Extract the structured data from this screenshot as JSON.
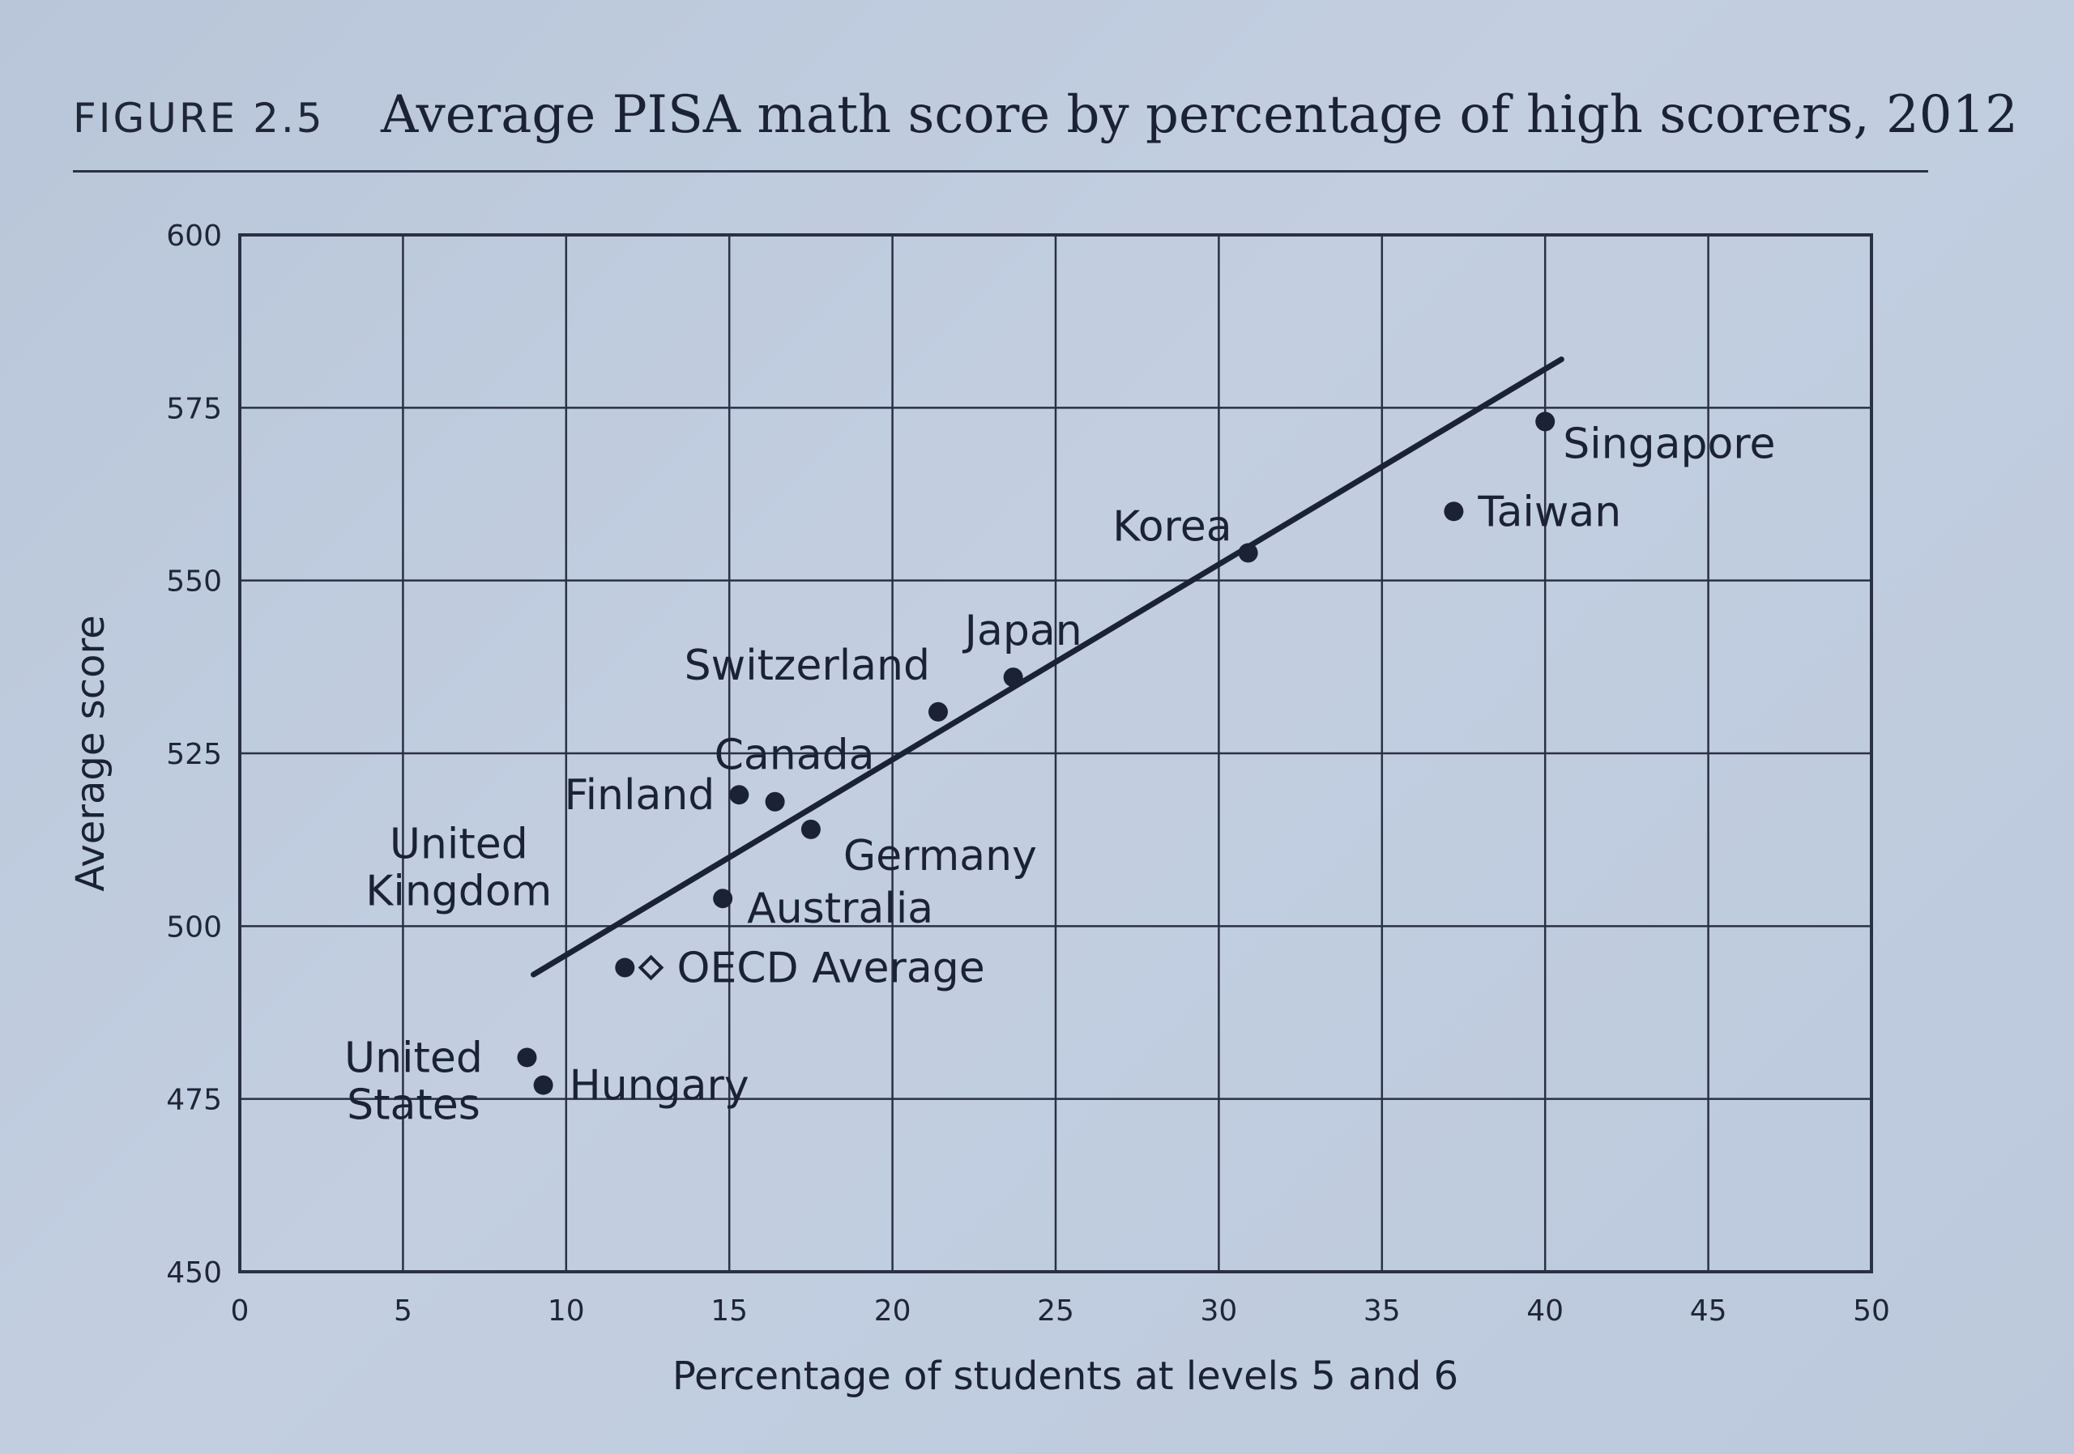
{
  "figure": {
    "label": "FIGURE 2.5",
    "title": "Average PISA math score by percentage of high scorers, 2012"
  },
  "chart_data": {
    "type": "scatter",
    "title": "Average PISA math score by percentage of high scorers, 2012",
    "xlabel": "Percentage of students at levels 5 and 6",
    "ylabel": "Average score",
    "xlim": [
      0,
      50
    ],
    "ylim": [
      450,
      600
    ],
    "xticks": [
      0,
      5,
      10,
      15,
      20,
      25,
      30,
      35,
      40,
      45,
      50
    ],
    "yticks": [
      450,
      475,
      500,
      525,
      550,
      575,
      600
    ],
    "grid": true,
    "colors": {
      "ink": "#1b2235",
      "grid": "#2a3145"
    },
    "points": [
      {
        "label": "Singapore",
        "x": 40,
        "y": 573,
        "marker": "filled"
      },
      {
        "label": "Taiwan",
        "x": 37.2,
        "y": 560,
        "marker": "filled"
      },
      {
        "label": "Korea",
        "x": 30.9,
        "y": 554,
        "marker": "filled"
      },
      {
        "label": "Japan",
        "x": 23.7,
        "y": 536,
        "marker": "filled"
      },
      {
        "label": "Switzerland",
        "x": 21.4,
        "y": 531,
        "marker": "filled"
      },
      {
        "label": "Canada",
        "x": 16.4,
        "y": 518,
        "marker": "filled"
      },
      {
        "label": "Finland",
        "x": 15.3,
        "y": 519,
        "marker": "filled"
      },
      {
        "label": "Germany",
        "x": 17.5,
        "y": 514,
        "marker": "filled"
      },
      {
        "label": "Australia",
        "x": 14.8,
        "y": 504,
        "marker": "filled"
      },
      {
        "label": "United Kingdom",
        "x": 11.8,
        "y": 494,
        "marker": "filled"
      },
      {
        "label": "OECD Average",
        "x": 12.6,
        "y": 494,
        "marker": "open-diamond"
      },
      {
        "label": "United States",
        "x": 8.8,
        "y": 481,
        "marker": "filled"
      },
      {
        "label": "Hungary",
        "x": 9.3,
        "y": 477,
        "marker": "filled"
      }
    ],
    "trendline": {
      "x": [
        9,
        40.5
      ],
      "y": [
        493,
        582
      ]
    }
  }
}
